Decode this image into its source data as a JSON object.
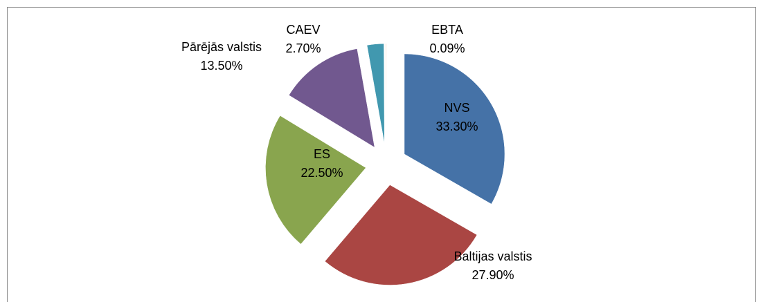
{
  "chart_data": {
    "type": "pie",
    "categories": [
      "NVS",
      "Baltijas valstis",
      "ES",
      "Pārējās valstis",
      "CAEV",
      "EBTA"
    ],
    "values": [
      33.3,
      27.9,
      22.5,
      13.5,
      2.7,
      0.09
    ],
    "value_labels": [
      "33.30%",
      "27.90%",
      "22.50%",
      "13.50%",
      "2.70%",
      "0.09%"
    ],
    "colors": [
      "#4572a7",
      "#aa4643",
      "#89a54e",
      "#71588f",
      "#4198af",
      "#db843d"
    ]
  }
}
